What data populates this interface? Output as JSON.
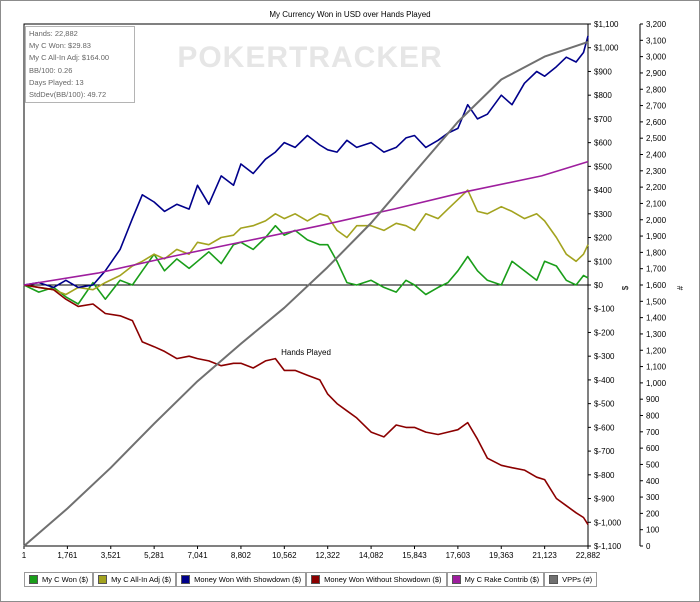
{
  "chart_data": {
    "type": "line",
    "title": "My Currency Won in USD over Hands Played",
    "xlabel": "Hands Played",
    "ylabel": "$",
    "y2label": "#",
    "watermark": "POKERTRACKER",
    "x_ticks": [
      "1",
      "1,761",
      "3,521",
      "5,281",
      "7,041",
      "8,802",
      "10,562",
      "12,322",
      "14,082",
      "15,843",
      "17,603",
      "19,363",
      "21,123",
      "22,882"
    ],
    "xlim": [
      1,
      22882
    ],
    "ylim": [
      -1100,
      1100
    ],
    "y2lim": [
      0,
      3200
    ],
    "y_ticks": [
      "$1,100",
      "$1,000",
      "$900",
      "$800",
      "$700",
      "$600",
      "$500",
      "$400",
      "$300",
      "$200",
      "$100",
      "$0",
      "$-100",
      "$-200",
      "$-300",
      "$-400",
      "$-500",
      "$-600",
      "$-700",
      "$-800",
      "$-900",
      "$-1,000",
      "$-1,100"
    ],
    "y2_ticks": [
      "3,200",
      "3,100",
      "3,000",
      "2,900",
      "2,800",
      "2,700",
      "2,600",
      "2,500",
      "2,400",
      "2,300",
      "2,200",
      "2,100",
      "2,000",
      "1,900",
      "1,800",
      "1,700",
      "1,600",
      "1,500",
      "1,400",
      "1,300",
      "1,200",
      "1,100",
      "1,000",
      "900",
      "800",
      "700",
      "600",
      "500",
      "400",
      "300",
      "200",
      "100",
      "0"
    ],
    "stats": [
      "Hands: 22,882",
      "My C Won: $29.83",
      "My C All-In Adj: $164.00",
      "BB/100: 0.26",
      "Days Played: 13",
      "StdDev(BB/100): 49.72"
    ],
    "series": [
      {
        "name": "My C Won ($)",
        "color": "#1a9e1a",
        "axis": "left",
        "x": [
          1,
          600,
          1200,
          1700,
          2200,
          2800,
          3300,
          3900,
          4400,
          4800,
          5281,
          5700,
          6200,
          6700,
          7041,
          7500,
          8000,
          8500,
          8802,
          9300,
          9800,
          10200,
          10562,
          11000,
          11500,
          12000,
          12322,
          12700,
          13100,
          13500,
          14082,
          14600,
          15100,
          15500,
          15843,
          16300,
          16800,
          17200,
          17603,
          18000,
          18400,
          18800,
          19363,
          19800,
          20300,
          20800,
          21123,
          21600,
          22000,
          22400,
          22700,
          22882
        ],
        "y": [
          0,
          -30,
          -10,
          -50,
          -80,
          10,
          -60,
          20,
          0,
          60,
          130,
          60,
          110,
          70,
          100,
          140,
          90,
          170,
          180,
          150,
          200,
          250,
          210,
          230,
          190,
          170,
          170,
          100,
          10,
          0,
          20,
          -10,
          -30,
          20,
          0,
          -40,
          -10,
          10,
          60,
          120,
          60,
          20,
          0,
          100,
          60,
          20,
          100,
          80,
          20,
          0,
          40,
          30
        ]
      },
      {
        "name": "My C All-In Adj ($)",
        "color": "#a3a31f",
        "axis": "left",
        "x": [
          1,
          600,
          1200,
          1700,
          2200,
          2800,
          3300,
          3900,
          4400,
          4800,
          5281,
          5700,
          6200,
          6700,
          7041,
          7500,
          8000,
          8500,
          8802,
          9300,
          9800,
          10200,
          10562,
          11000,
          11500,
          12000,
          12322,
          12700,
          13100,
          13500,
          14082,
          14600,
          15100,
          15500,
          15843,
          16300,
          16800,
          17200,
          17603,
          18000,
          18400,
          18800,
          19363,
          19800,
          20300,
          20800,
          21123,
          21600,
          22000,
          22400,
          22700,
          22882
        ],
        "y": [
          0,
          -10,
          -20,
          -40,
          -10,
          -20,
          10,
          40,
          80,
          100,
          130,
          110,
          150,
          130,
          180,
          170,
          200,
          210,
          240,
          250,
          270,
          300,
          280,
          300,
          270,
          300,
          290,
          230,
          200,
          250,
          250,
          230,
          260,
          250,
          230,
          300,
          280,
          320,
          360,
          400,
          310,
          300,
          330,
          310,
          280,
          300,
          270,
          200,
          130,
          100,
          130,
          170
        ]
      },
      {
        "name": "Money Won With Showdown ($)",
        "color": "#00008b",
        "axis": "left",
        "x": [
          1,
          600,
          1200,
          1700,
          2200,
          2800,
          3300,
          3900,
          4400,
          4800,
          5281,
          5700,
          6200,
          6700,
          7041,
          7500,
          8000,
          8500,
          8802,
          9300,
          9800,
          10200,
          10562,
          11000,
          11500,
          12000,
          12322,
          12700,
          13100,
          13500,
          14082,
          14600,
          15100,
          15500,
          15843,
          16300,
          16800,
          17200,
          17603,
          18000,
          18400,
          18800,
          19363,
          19800,
          20300,
          20800,
          21123,
          21600,
          22000,
          22400,
          22700,
          22882
        ],
        "y": [
          0,
          10,
          -10,
          20,
          -10,
          0,
          60,
          150,
          280,
          380,
          350,
          310,
          340,
          320,
          420,
          340,
          460,
          420,
          510,
          470,
          530,
          560,
          600,
          580,
          630,
          590,
          570,
          560,
          610,
          580,
          600,
          560,
          580,
          620,
          630,
          580,
          610,
          640,
          660,
          760,
          700,
          720,
          800,
          760,
          850,
          900,
          880,
          920,
          960,
          940,
          980,
          1050
        ]
      },
      {
        "name": "Money Won Without Showdown ($)",
        "color": "#8b0000",
        "axis": "left",
        "x": [
          1,
          600,
          1200,
          1700,
          2200,
          2800,
          3300,
          3900,
          4400,
          4800,
          5281,
          5700,
          6200,
          6700,
          7041,
          7500,
          8000,
          8500,
          8802,
          9300,
          9800,
          10200,
          10562,
          11000,
          11500,
          12000,
          12322,
          12700,
          13100,
          13500,
          14082,
          14600,
          15100,
          15500,
          15843,
          16300,
          16800,
          17200,
          17603,
          18000,
          18400,
          18800,
          19363,
          19800,
          20300,
          20800,
          21123,
          21600,
          22000,
          22400,
          22700,
          22882
        ],
        "y": [
          0,
          -10,
          -20,
          -60,
          -90,
          -80,
          -120,
          -130,
          -150,
          -240,
          -260,
          -280,
          -310,
          -300,
          -310,
          -320,
          -340,
          -330,
          -330,
          -350,
          -320,
          -310,
          -360,
          -360,
          -380,
          -400,
          -460,
          -500,
          -530,
          -560,
          -620,
          -640,
          -590,
          -600,
          -600,
          -620,
          -630,
          -620,
          -610,
          -580,
          -650,
          -730,
          -760,
          -770,
          -780,
          -810,
          -820,
          -900,
          -930,
          -960,
          -980,
          -1010
        ]
      },
      {
        "name": "My C Rake Contrib ($)",
        "color": "#9e1e9e",
        "axis": "left",
        "x": [
          1,
          3000,
          6000,
          9000,
          12000,
          15000,
          18000,
          21000,
          22882
        ],
        "y": [
          0,
          50,
          120,
          185,
          250,
          320,
          395,
          460,
          520
        ]
      },
      {
        "name": "VPPs (#)",
        "color": "#707070",
        "axis": "right",
        "x": [
          1,
          1761,
          3521,
          5281,
          7041,
          8802,
          10562,
          12322,
          14082,
          15843,
          17603,
          19363,
          21123,
          22882
        ],
        "y": [
          0,
          230,
          480,
          750,
          1010,
          1240,
          1460,
          1710,
          1980,
          2290,
          2600,
          2860,
          3000,
          3090
        ]
      }
    ],
    "grid": false,
    "legend_position": "bottom"
  }
}
